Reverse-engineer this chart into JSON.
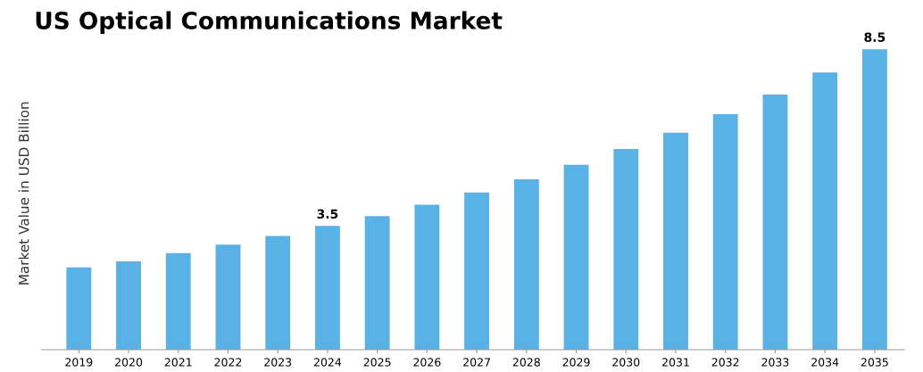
{
  "chart_data": {
    "type": "bar",
    "title": "US Optical Communications Market",
    "ylabel": "Market Value in USD Billion",
    "categories": [
      "2019",
      "2020",
      "2021",
      "2022",
      "2023",
      "2024",
      "2025",
      "2026",
      "2027",
      "2028",
      "2029",
      "2030",
      "2031",
      "2032",
      "2033",
      "2034",
      "2035"
    ],
    "values": [
      2.33,
      2.5,
      2.73,
      2.97,
      3.22,
      3.5,
      3.78,
      4.1,
      4.45,
      4.82,
      5.23,
      5.68,
      6.14,
      6.66,
      7.22,
      7.84,
      8.5
    ],
    "value_labels": [
      null,
      null,
      null,
      null,
      null,
      "3.5",
      null,
      null,
      null,
      null,
      null,
      null,
      null,
      null,
      null,
      null,
      "8.5"
    ],
    "color": "#5ab1e5",
    "grid": false,
    "legend": false
  }
}
